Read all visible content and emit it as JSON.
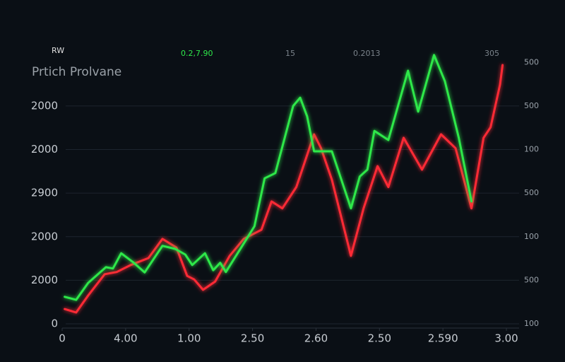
{
  "chart_data": {
    "type": "line",
    "title": "Prtich Prolvane",
    "annotations": [
      "15",
      "0.2013",
      "305"
    ],
    "xlim": [
      0,
      7.2
    ],
    "xticks": [
      0,
      {
        "value": 1,
        "label": "4.00"
      },
      {
        "value": 2,
        "label": "1.00"
      },
      {
        "value": 3,
        "label": "2.50"
      },
      {
        "value": 4,
        "label": "2.60"
      },
      {
        "value": 5,
        "label": "2.50"
      },
      {
        "value": 6,
        "label": "2.590"
      },
      {
        "value": 7,
        "label": "3.00"
      }
    ],
    "ylim": [
      0,
      6.2
    ],
    "yticks": [
      0,
      {
        "value": 1,
        "label": "2000"
      },
      {
        "value": 2,
        "label": "2000"
      },
      {
        "value": 3,
        "label": "2900"
      },
      {
        "value": 4,
        "label": "2000"
      },
      {
        "value": 5,
        "label": "2000"
      }
    ],
    "y2lim": [
      0,
      6.2
    ],
    "y2ticks": [
      {
        "value": 0,
        "label": "100"
      },
      {
        "value": 1,
        "label": "500"
      },
      {
        "value": 2,
        "label": "100"
      },
      {
        "value": 3,
        "label": "500"
      },
      {
        "value": 4,
        "label": "100"
      },
      {
        "value": 5,
        "label": "500"
      },
      {
        "value": 6,
        "label": "500"
      }
    ],
    "grid": true,
    "series": [
      {
        "name": "RW",
        "color": "#ff2a36",
        "x": [
          0.04,
          0.22,
          0.41,
          0.67,
          0.86,
          1.08,
          1.36,
          1.58,
          1.8,
          1.97,
          2.08,
          2.22,
          2.41,
          2.64,
          2.86,
          3.14,
          3.3,
          3.47,
          3.69,
          3.97,
          4.08,
          4.25,
          4.55,
          4.75,
          4.97,
          5.14,
          5.38,
          5.67,
          5.97,
          6.2,
          6.45,
          6.64,
          6.75,
          6.9,
          6.94
        ],
        "values": [
          0.34,
          0.26,
          0.65,
          1.14,
          1.19,
          1.35,
          1.51,
          1.95,
          1.75,
          1.1,
          1.02,
          0.78,
          0.97,
          1.56,
          1.95,
          2.16,
          2.81,
          2.65,
          3.14,
          4.35,
          4.03,
          3.31,
          1.56,
          2.65,
          3.62,
          3.14,
          4.27,
          3.54,
          4.35,
          4.03,
          2.65,
          4.27,
          4.51,
          5.49,
          5.94
        ]
      },
      {
        "name": "0.2,7.90",
        "color": "#2ee84a",
        "x": [
          0.04,
          0.22,
          0.41,
          0.69,
          0.8,
          0.93,
          1.13,
          1.3,
          1.58,
          1.78,
          1.94,
          2.05,
          2.25,
          2.38,
          2.49,
          2.58,
          2.86,
          3.03,
          3.19,
          3.36,
          3.64,
          3.75,
          3.86,
          3.97,
          4.25,
          4.55,
          4.69,
          4.81,
          4.92,
          5.14,
          5.45,
          5.61,
          5.86,
          6.03,
          6.25,
          6.45
        ],
        "values": [
          0.62,
          0.55,
          0.94,
          1.3,
          1.27,
          1.62,
          1.4,
          1.18,
          1.79,
          1.72,
          1.59,
          1.35,
          1.62,
          1.23,
          1.4,
          1.19,
          1.84,
          2.24,
          3.34,
          3.46,
          5.0,
          5.19,
          4.76,
          3.96,
          3.96,
          2.65,
          3.38,
          3.54,
          4.43,
          4.22,
          5.81,
          4.87,
          6.17,
          5.57,
          4.27,
          2.81
        ]
      }
    ]
  }
}
